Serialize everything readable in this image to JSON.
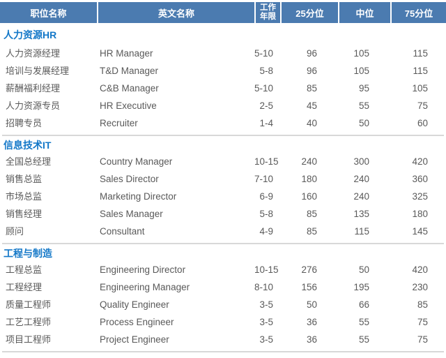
{
  "table": {
    "header": {
      "job_title_cn": "职位名称",
      "job_title_en": "英文名称",
      "work_years_line1": "工作",
      "work_years_line2": "年限",
      "p25": "25分位",
      "median": "中位",
      "p75": "75分位",
      "bg_color": "#4b7bb0",
      "text_color": "#ffffff"
    },
    "section_title_color": "#1478c8",
    "body_text_color": "#595959",
    "divider_color": "#d8d8d8",
    "sections": [
      {
        "title": "人力资源HR",
        "rows": [
          {
            "cn": "人力资源经理",
            "en": "HR Manager",
            "years": "5-10",
            "p25": "96",
            "median": "105",
            "p75": "115"
          },
          {
            "cn": "培训与发展经理",
            "en": "T&D Manager",
            "years": "5-8",
            "p25": "96",
            "median": "105",
            "p75": "115"
          },
          {
            "cn": "薪酬福利经理",
            "en": "C&B Manager",
            "years": "5-10",
            "p25": "85",
            "median": "95",
            "p75": "105"
          },
          {
            "cn": "人力资源专员",
            "en": "HR Executive",
            "years": "2-5",
            "p25": "45",
            "median": "55",
            "p75": "75"
          },
          {
            "cn": "招聘专员",
            "en": "Recruiter",
            "years": "1-4",
            "p25": "40",
            "median": "50",
            "p75": "60"
          }
        ]
      },
      {
        "title": "信息技术IT",
        "rows": [
          {
            "cn": "全国总经理",
            "en": "Country Manager",
            "years": "10-15",
            "p25": "240",
            "median": "300",
            "p75": "420"
          },
          {
            "cn": "销售总监",
            "en": "Sales Director",
            "years": "7-10",
            "p25": "180",
            "median": "240",
            "p75": "360"
          },
          {
            "cn": "市场总监",
            "en": "Marketing Director",
            "years": "6-9",
            "p25": "160",
            "median": "240",
            "p75": "325"
          },
          {
            "cn": "销售经理",
            "en": "Sales Manager",
            "years": "5-8",
            "p25": "85",
            "median": "135",
            "p75": "180"
          },
          {
            "cn": "顾问",
            "en": "Consultant",
            "years": "4-9",
            "p25": "85",
            "median": "115",
            "p75": "145"
          }
        ]
      },
      {
        "title": "工程与制造",
        "rows": [
          {
            "cn": "工程总监",
            "en": "Engineering Director",
            "years": "10-15",
            "p25": "276",
            "median": "50",
            "p75": "420"
          },
          {
            "cn": "工程经理",
            "en": "Engineering Manager",
            "years": "8-10",
            "p25": "156",
            "median": "195",
            "p75": "230"
          },
          {
            "cn": "质量工程师",
            "en": "Quality Engineer",
            "years": "3-5",
            "p25": "50",
            "median": "66",
            "p75": "85"
          },
          {
            "cn": "工艺工程师",
            "en": "Process Engineer",
            "years": "3-5",
            "p25": "36",
            "median": "55",
            "p75": "75"
          },
          {
            "cn": "项目工程师",
            "en": "Project Engineer",
            "years": "3-5",
            "p25": "36",
            "median": "55",
            "p75": "75"
          }
        ]
      }
    ]
  },
  "chart_data": {
    "type": "table",
    "columns": [
      "职位名称",
      "英文名称",
      "工作年限",
      "25分位",
      "中位",
      "75分位"
    ],
    "rows": [
      [
        "人力资源HR",
        "",
        "",
        null,
        null,
        null
      ],
      [
        "人力资源经理",
        "HR Manager",
        "5-10",
        96,
        105,
        115
      ],
      [
        "培训与发展经理",
        "T&D Manager",
        "5-8",
        96,
        105,
        115
      ],
      [
        "薪酬福利经理",
        "C&B Manager",
        "5-10",
        85,
        95,
        105
      ],
      [
        "人力资源专员",
        "HR Executive",
        "2-5",
        45,
        55,
        75
      ],
      [
        "招聘专员",
        "Recruiter",
        "1-4",
        40,
        50,
        60
      ],
      [
        "信息技术IT",
        "",
        "",
        null,
        null,
        null
      ],
      [
        "全国总经理",
        "Country Manager",
        "10-15",
        240,
        300,
        420
      ],
      [
        "销售总监",
        "Sales Director",
        "7-10",
        180,
        240,
        360
      ],
      [
        "市场总监",
        "Marketing Director",
        "6-9",
        160,
        240,
        325
      ],
      [
        "销售经理",
        "Sales Manager",
        "5-8",
        85,
        135,
        180
      ],
      [
        "顾问",
        "Consultant",
        "4-9",
        85,
        115,
        145
      ],
      [
        "工程与制造",
        "",
        "",
        null,
        null,
        null
      ],
      [
        "工程总监",
        "Engineering Director",
        "10-15",
        276,
        50,
        420
      ],
      [
        "工程经理",
        "Engineering Manager",
        "8-10",
        156,
        195,
        230
      ],
      [
        "质量工程师",
        "Quality Engineer",
        "3-5",
        50,
        66,
        85
      ],
      [
        "工艺工程师",
        "Process Engineer",
        "3-5",
        36,
        55,
        75
      ],
      [
        "项目工程师",
        "Project Engineer",
        "3-5",
        36,
        55,
        75
      ]
    ]
  }
}
